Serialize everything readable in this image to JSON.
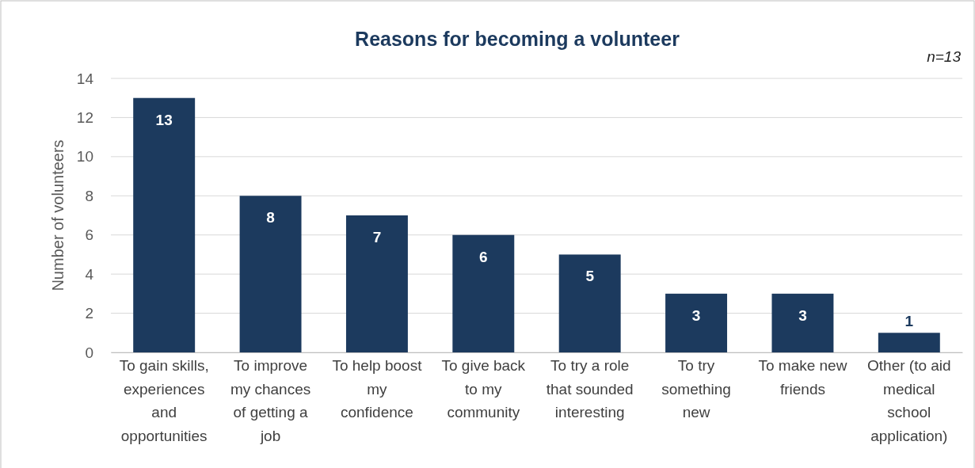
{
  "chart_data": {
    "type": "bar",
    "title": "Reasons for becoming a volunteer",
    "ylabel": "Number of volunteers",
    "annotations": [
      "n=13"
    ],
    "categories": [
      "To gain skills, experiences and opportunities",
      "To improve my chances of getting a job",
      "To help boost my confidence",
      "To give back to my community",
      "To try a role that sounded interesting",
      "To try something new",
      "To make new friends",
      "Other (to aid medical school application)"
    ],
    "values": [
      13,
      8,
      7,
      6,
      5,
      3,
      3,
      1
    ],
    "color": "#1c3a5e",
    "ylim": [
      0,
      14
    ],
    "yticks": [
      0,
      2,
      4,
      6,
      8,
      10,
      12,
      14
    ],
    "grid": "y",
    "data_labels": true
  }
}
